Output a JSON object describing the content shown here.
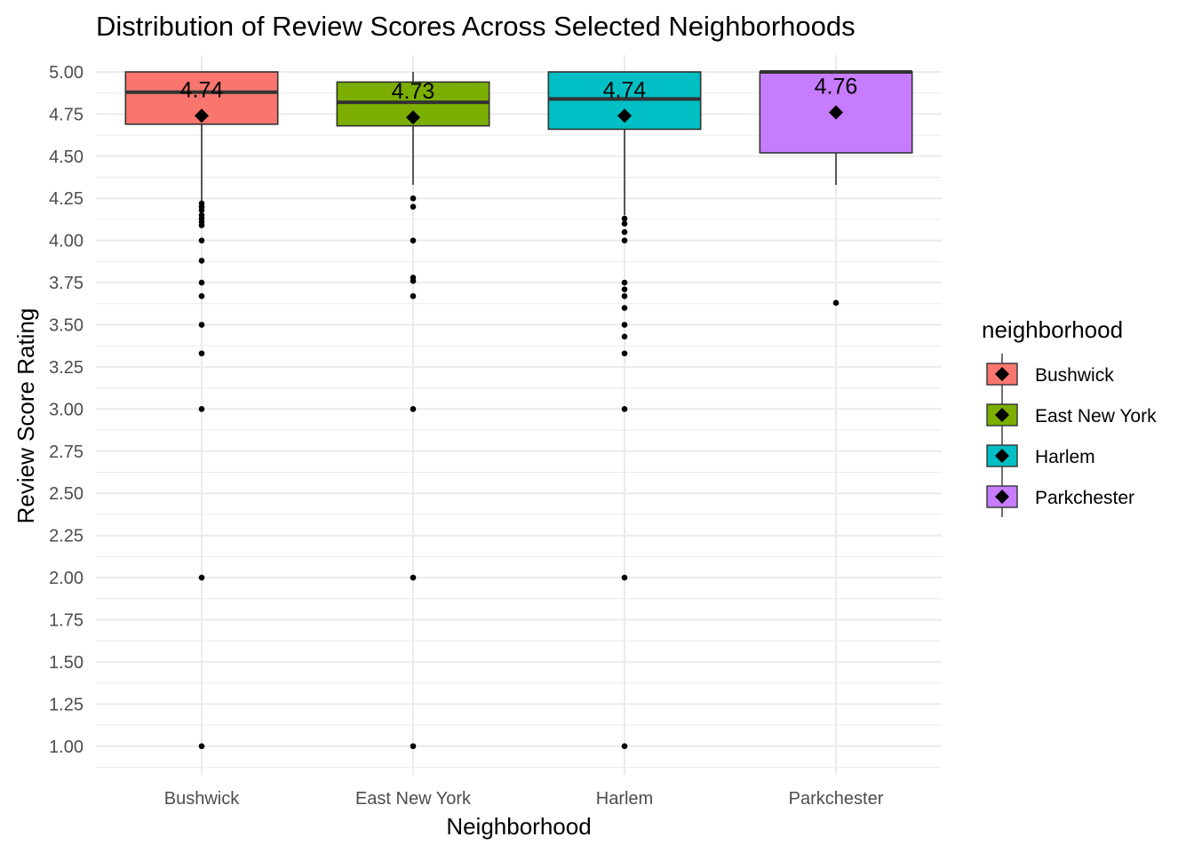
{
  "chart_data": {
    "type": "box",
    "title": "Distribution of Review Scores Across Selected Neighborhoods",
    "xlabel": "Neighborhood",
    "ylabel": "Review Score Rating",
    "ylim": [
      0.83,
      5.1
    ],
    "y_ticks": [
      "1.00",
      "1.25",
      "1.50",
      "1.75",
      "2.00",
      "2.25",
      "2.50",
      "2.75",
      "3.00",
      "3.25",
      "3.50",
      "3.75",
      "4.00",
      "4.25",
      "4.50",
      "4.75",
      "5.00"
    ],
    "grid": true,
    "legend": {
      "title": "neighborhood",
      "position": "right"
    },
    "categories": [
      "Bushwick",
      "East New York",
      "Harlem",
      "Parkchester"
    ],
    "series": [
      {
        "name": "Bushwick",
        "color": "#F8766D",
        "q1": 4.69,
        "median": 4.88,
        "q3": 5.0,
        "whisker_low": 4.23,
        "whisker_high": 5.0,
        "mean": 4.74,
        "mean_label": "4.74",
        "outliers": [
          4.22,
          4.2,
          4.18,
          4.15,
          4.13,
          4.11,
          4.09,
          4.0,
          3.88,
          3.75,
          3.67,
          3.5,
          3.33,
          3.0,
          2.0,
          1.0
        ]
      },
      {
        "name": "East New York",
        "color": "#7CAE00",
        "q1": 4.68,
        "median": 4.82,
        "q3": 4.94,
        "whisker_low": 4.33,
        "whisker_high": 5.0,
        "mean": 4.73,
        "mean_label": "4.73",
        "outliers": [
          4.25,
          4.2,
          4.0,
          3.78,
          3.76,
          3.67,
          3.0,
          2.0,
          1.0
        ]
      },
      {
        "name": "Harlem",
        "color": "#00BFC4",
        "q1": 4.66,
        "median": 4.84,
        "q3": 5.0,
        "whisker_low": 4.15,
        "whisker_high": 5.0,
        "mean": 4.74,
        "mean_label": "4.74",
        "outliers": [
          4.13,
          4.1,
          4.05,
          4.0,
          3.75,
          3.71,
          3.67,
          3.6,
          3.5,
          3.43,
          3.33,
          3.0,
          2.0,
          1.0
        ]
      },
      {
        "name": "Parkchester",
        "color": "#C77CFF",
        "q1": 4.52,
        "median": 5.0,
        "q3": 5.0,
        "whisker_low": 4.33,
        "whisker_high": 5.0,
        "mean": 4.76,
        "mean_label": "4.76",
        "outliers": [
          3.63
        ]
      }
    ]
  }
}
